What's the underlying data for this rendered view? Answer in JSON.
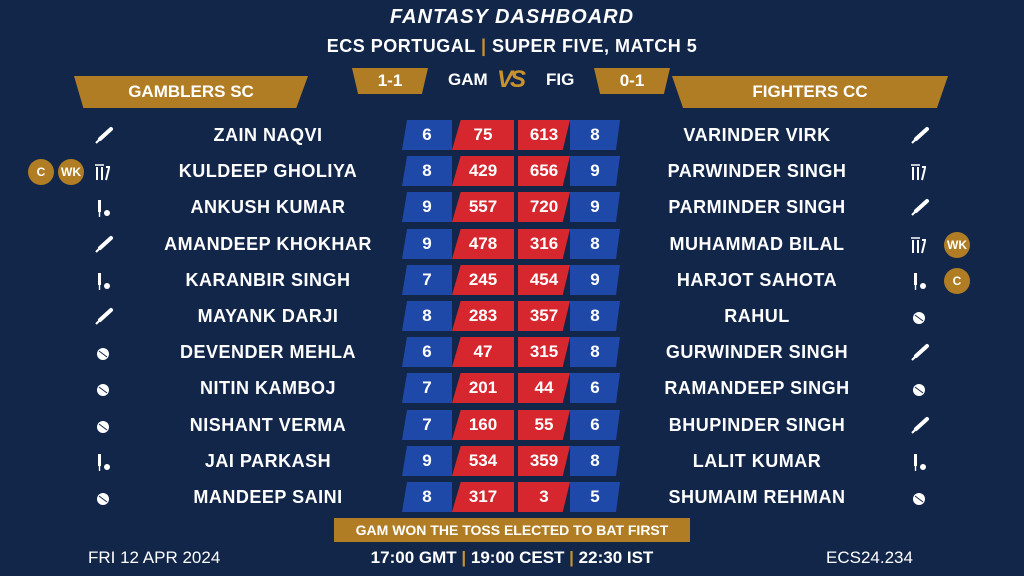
{
  "header": {
    "title": "FANTASY DASHBOARD",
    "subtitle_left": "ECS PORTUGAL",
    "subtitle_sep": "|",
    "subtitle_right": "SUPER FIVE, MATCH 5"
  },
  "match": {
    "left_team": "GAMBLERS SC",
    "right_team": "FIGHTERS CC",
    "left_score": "1-1",
    "right_score": "0-1",
    "left_abbr": "GAM",
    "right_abbr": "FIG",
    "vs": "VS"
  },
  "left_players": [
    {
      "name": "ZAIN NAQVI",
      "num": "6",
      "pts": "75",
      "icon": "bat-icon",
      "badges": []
    },
    {
      "name": "KULDEEP GHOLIYA",
      "num": "8",
      "pts": "429",
      "icon": "wicketkeeper-icon",
      "badges": [
        "C",
        "WK"
      ]
    },
    {
      "name": "ANKUSH KUMAR",
      "num": "9",
      "pts": "557",
      "icon": "allrounder-icon",
      "badges": []
    },
    {
      "name": "AMANDEEP KHOKHAR",
      "num": "9",
      "pts": "478",
      "icon": "bat-icon",
      "badges": []
    },
    {
      "name": "KARANBIR SINGH",
      "num": "7",
      "pts": "245",
      "icon": "allrounder-icon",
      "badges": []
    },
    {
      "name": "MAYANK DARJI",
      "num": "8",
      "pts": "283",
      "icon": "bat-icon",
      "badges": []
    },
    {
      "name": "DEVENDER MEHLA",
      "num": "6",
      "pts": "47",
      "icon": "ball-icon",
      "badges": []
    },
    {
      "name": "NITIN KAMBOJ",
      "num": "7",
      "pts": "201",
      "icon": "ball-icon",
      "badges": []
    },
    {
      "name": "NISHANT VERMA",
      "num": "7",
      "pts": "160",
      "icon": "ball-icon",
      "badges": []
    },
    {
      "name": "JAI PARKASH",
      "num": "9",
      "pts": "534",
      "icon": "allrounder-icon",
      "badges": []
    },
    {
      "name": "MANDEEP SAINI",
      "num": "8",
      "pts": "317",
      "icon": "ball-icon",
      "badges": []
    }
  ],
  "right_players": [
    {
      "name": "VARINDER VIRK",
      "num": "8",
      "pts": "613",
      "icon": "bat-icon",
      "badges": []
    },
    {
      "name": "PARWINDER SINGH",
      "num": "9",
      "pts": "656",
      "icon": "wicketkeeper-icon",
      "badges": []
    },
    {
      "name": "PARMINDER SINGH",
      "num": "9",
      "pts": "720",
      "icon": "bat-icon",
      "badges": []
    },
    {
      "name": "MUHAMMAD BILAL",
      "num": "8",
      "pts": "316",
      "icon": "wicketkeeper-icon",
      "badges": [
        "WK"
      ]
    },
    {
      "name": "HARJOT SAHOTA",
      "num": "9",
      "pts": "454",
      "icon": "allrounder-icon",
      "badges": [
        "C"
      ]
    },
    {
      "name": "RAHUL",
      "num": "8",
      "pts": "357",
      "icon": "ball-icon",
      "badges": []
    },
    {
      "name": "GURWINDER SINGH",
      "num": "8",
      "pts": "315",
      "icon": "bat-icon",
      "badges": []
    },
    {
      "name": "RAMANDEEP SINGH",
      "num": "6",
      "pts": "44",
      "icon": "ball-icon",
      "badges": []
    },
    {
      "name": "BHUPINDER SINGH",
      "num": "6",
      "pts": "55",
      "icon": "bat-icon",
      "badges": []
    },
    {
      "name": "LALIT KUMAR",
      "num": "8",
      "pts": "359",
      "icon": "allrounder-icon",
      "badges": []
    },
    {
      "name": "SHUMAIM REHMAN",
      "num": "5",
      "pts": "3",
      "icon": "ball-icon",
      "badges": []
    }
  ],
  "toss": "GAM WON THE TOSS ELECTED TO BAT FIRST",
  "footer": {
    "date": "FRI 12 APR 2024",
    "time_gmt": "17:00 GMT",
    "time_cest": "19:00 CEST",
    "time_ist": "22:30 IST",
    "sep": "|",
    "code": "ECS24.234"
  },
  "colors": {
    "background": "#12264a",
    "gold": "#b07d24",
    "blue": "#1f49a8",
    "red": "#d6262e"
  }
}
